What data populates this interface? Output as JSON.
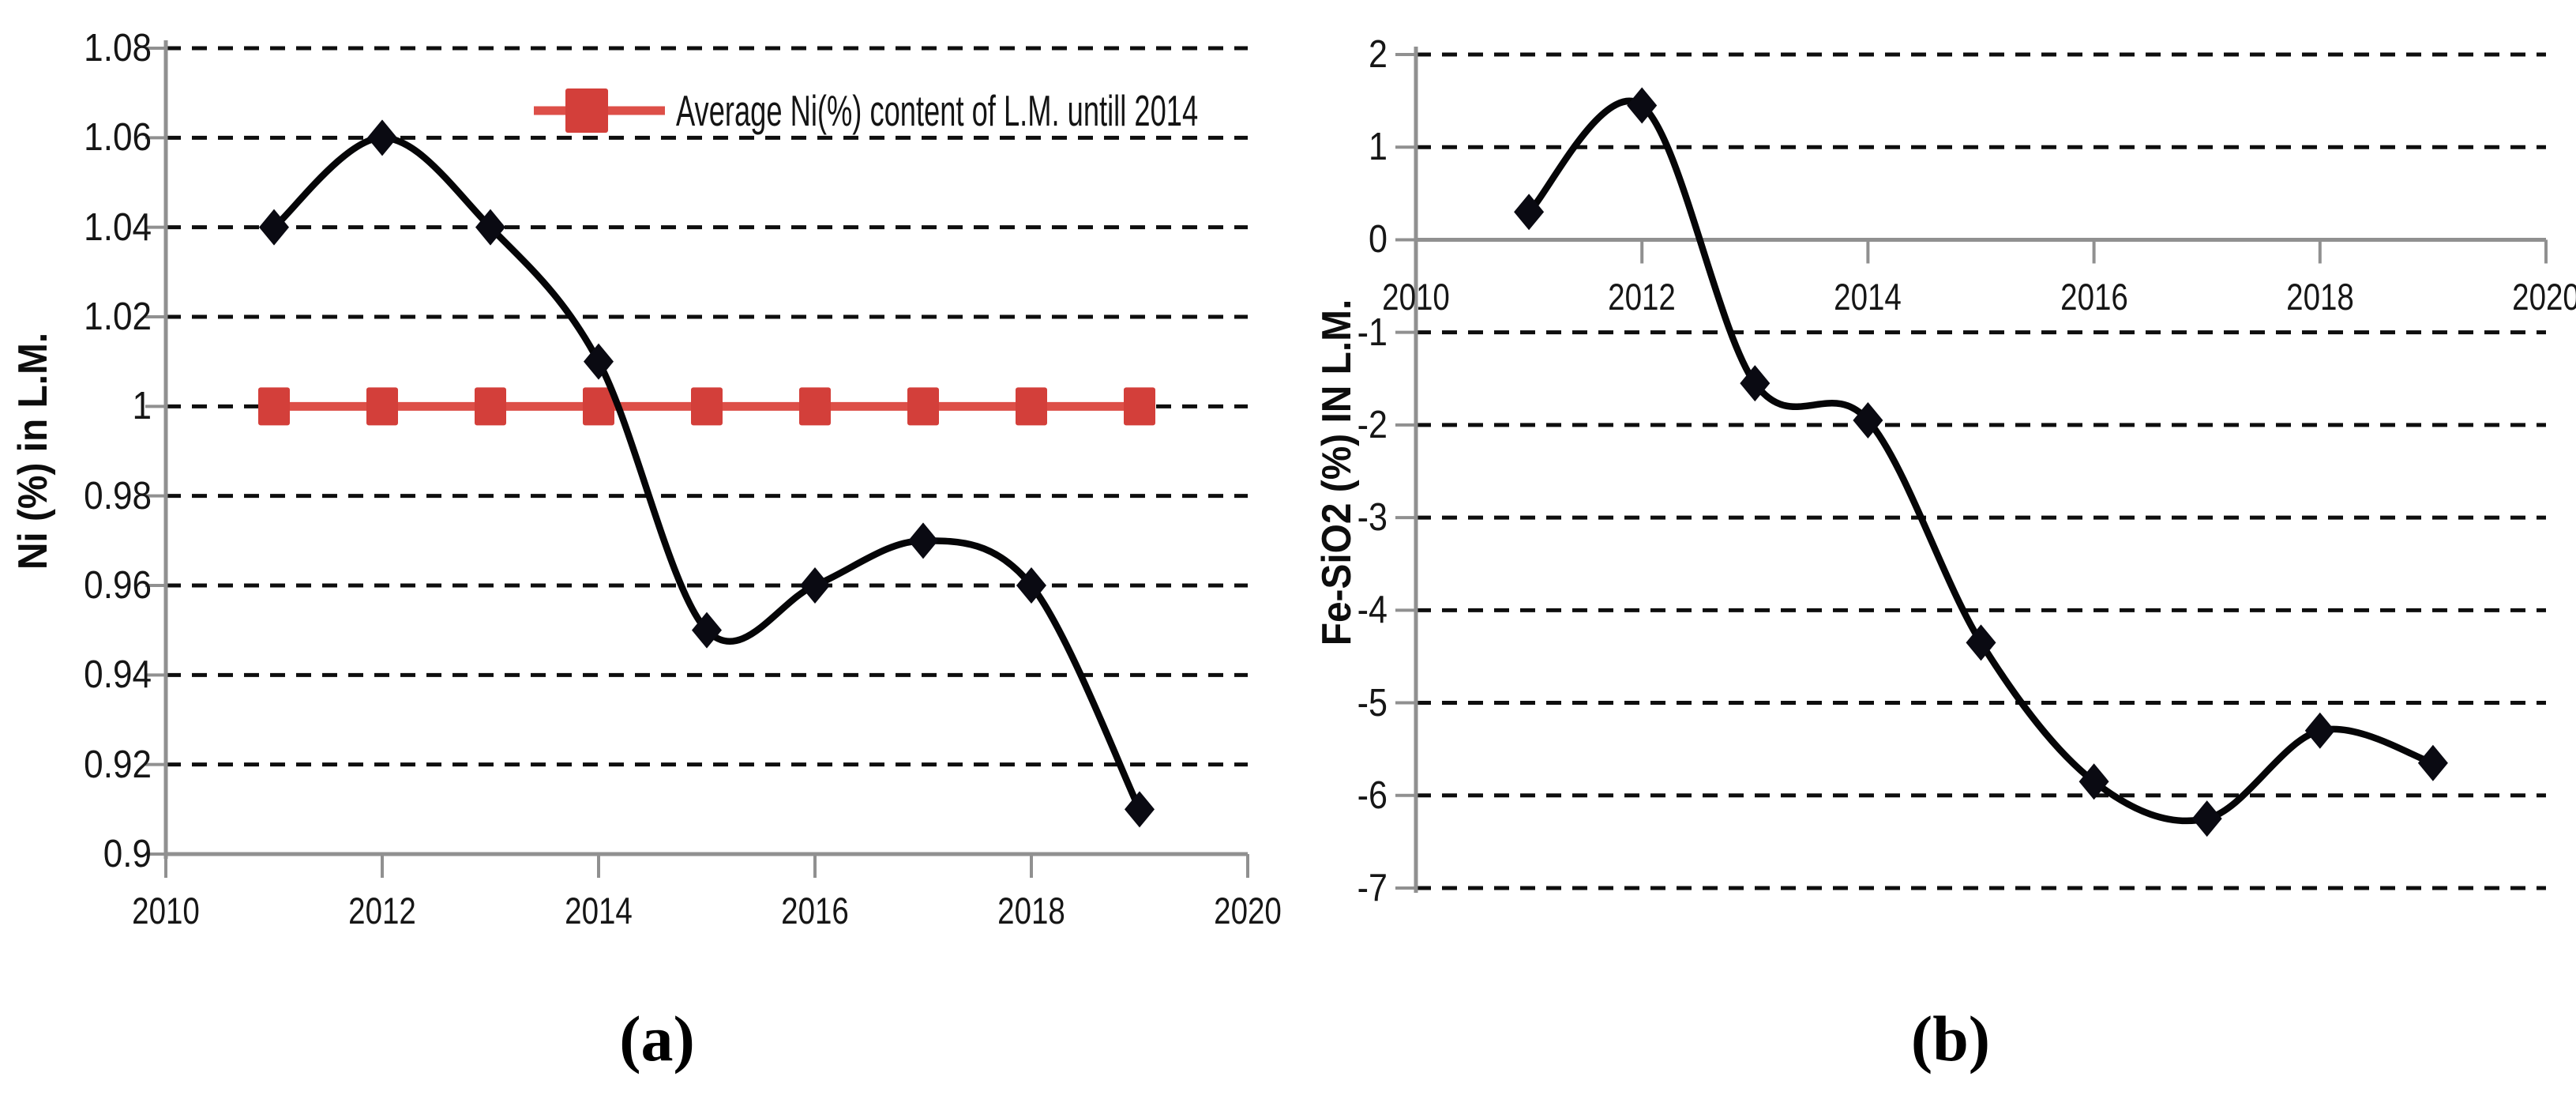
{
  "figure": {
    "background": "#ffffff",
    "grid_color": "#0e0e0e",
    "axis_color": "#909090",
    "tick_color": "#909090"
  },
  "chart_data": [
    {
      "id": "a",
      "type": "line",
      "caption": "(a)",
      "ylabel": "Ni (%) in L.M.",
      "xlabel": "",
      "xlim": [
        2010,
        2020
      ],
      "ylim": [
        0.9,
        1.08
      ],
      "grid": "horizontal-dashed",
      "x_ticks": [
        2010,
        2012,
        2014,
        2016,
        2018,
        2020
      ],
      "x_tick_labels": [
        "2010",
        "2012",
        "2014",
        "2016",
        "2018",
        "2020"
      ],
      "y_ticks": [
        1.08,
        1.06,
        1.04,
        1.02,
        1,
        0.98,
        0.96,
        0.94,
        0.92,
        0.9
      ],
      "y_tick_labels": [
        "1.08",
        "1.06",
        "1.04",
        "1.02",
        "1",
        "0.98",
        "0.96",
        "0.94",
        "0.92",
        "0.9"
      ],
      "legend": {
        "position": "top-right",
        "label": "Average Ni(%) content of L.M. untill 2014",
        "series": "average"
      },
      "x": [
        2011,
        2012,
        2013,
        2014,
        2015,
        2016,
        2017,
        2018,
        2019
      ],
      "series": [
        {
          "key": "average",
          "label": "Average Ni(%) content of L.M. untill 2014",
          "color": "#d33f3a",
          "line_color": "#dd4f48",
          "marker": "square",
          "smooth": false,
          "values": [
            1,
            1,
            1,
            1,
            1,
            1,
            1,
            1,
            1
          ]
        },
        {
          "key": "ni-content",
          "label": "",
          "color": "#0a0a12",
          "line_color": "#050507",
          "marker": "diamond",
          "smooth": true,
          "values": [
            1.04,
            1.06,
            1.04,
            1.01,
            0.95,
            0.96,
            0.97,
            0.96,
            0.91
          ]
        }
      ]
    },
    {
      "id": "b",
      "type": "line",
      "caption": "(b)",
      "ylabel": "Fe-SiO2 (%) IN L.M.",
      "xlabel": "",
      "xlim": [
        2010,
        2020
      ],
      "ylim": [
        -7,
        2
      ],
      "grid": "horizontal-dashed",
      "x_axis_crosses_at": 0,
      "x_ticks": [
        2010,
        2012,
        2014,
        2016,
        2018,
        2020
      ],
      "x_tick_labels": [
        "2010",
        "2012",
        "2014",
        "2016",
        "2018",
        "2020"
      ],
      "y_ticks": [
        2,
        1,
        0,
        -1,
        -2,
        -3,
        -4,
        -5,
        -6,
        -7
      ],
      "y_tick_labels": [
        "2",
        "1",
        "0",
        "-1",
        "-2",
        "-3",
        "-4",
        "-5",
        "-6",
        "-7"
      ],
      "x": [
        2011,
        2012,
        2013,
        2014,
        2015,
        2016,
        2017,
        2018,
        2019
      ],
      "series": [
        {
          "key": "fe-sio2",
          "label": "",
          "color": "#0a0a12",
          "line_color": "#050507",
          "marker": "diamond",
          "smooth": true,
          "values": [
            0.3,
            1.45,
            -1.55,
            -1.95,
            -4.35,
            -5.85,
            -6.25,
            -5.3,
            -5.65
          ]
        }
      ]
    }
  ]
}
